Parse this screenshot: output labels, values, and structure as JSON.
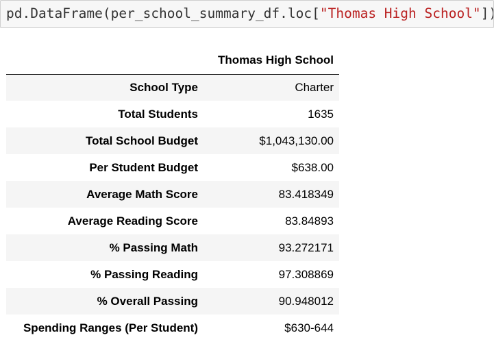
{
  "code_cell": {
    "prefix": "pd.DataFrame(per_school_summary_df.loc[",
    "string_arg": "\"Thomas High School\"",
    "suffix": "])"
  },
  "table": {
    "column_header": "Thomas High School",
    "rows": [
      {
        "label": "School Type",
        "value": "Charter"
      },
      {
        "label": "Total Students",
        "value": "1635"
      },
      {
        "label": "Total School Budget",
        "value": "$1,043,130.00"
      },
      {
        "label": "Per Student Budget",
        "value": "$638.00"
      },
      {
        "label": "Average Math Score",
        "value": "83.418349"
      },
      {
        "label": "Average Reading Score",
        "value": "83.84893"
      },
      {
        "label": "% Passing Math",
        "value": "93.272171"
      },
      {
        "label": "% Passing Reading",
        "value": "97.308869"
      },
      {
        "label": "% Overall Passing",
        "value": "90.948012"
      },
      {
        "label": "Spending Ranges (Per Student)",
        "value": "$630-644"
      }
    ]
  }
}
